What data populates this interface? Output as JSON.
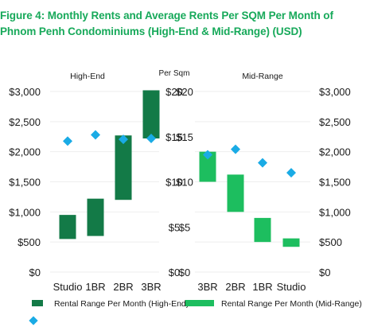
{
  "title": {
    "line1": "Figure 4: Monthly Rents and Average Rents Per SQM Per Month of",
    "line2": "Phnom Penh Condominiums (High-End & Mid-Range) (USD)"
  },
  "unit_label": "Per Sqm",
  "colors": {
    "title": "#17a95a",
    "high_end": "#137a47",
    "mid_range": "#1dbe5f",
    "per_sqm_marker": "#1aabe5"
  },
  "legend": [
    {
      "label": "Rental Range Per Month (High-End)",
      "color": "#137a47",
      "marker": "rect"
    },
    {
      "label": "Rental Range Per Month (Mid-Range)",
      "color": "#1dbe5f",
      "marker": "rect"
    },
    {
      "label": "",
      "color": "#1aabe5",
      "marker": "diamond"
    }
  ],
  "chart_data": [
    {
      "type": "bar",
      "subtitle": "High-End",
      "categories": [
        "Studio",
        "1BR",
        "2BR",
        "3BR"
      ],
      "ylim": [
        0,
        3000
      ],
      "yticks": [
        "$0",
        "$500",
        "$1,000",
        "$1,500",
        "$2,000",
        "$2,500",
        "$3,000"
      ],
      "series": [
        {
          "name": "Rental Range Per Month (High-End)",
          "kind": "range",
          "values": [
            [
              550,
              950
            ],
            [
              600,
              1220
            ],
            [
              1200,
              2270
            ],
            [
              2220,
              3020
            ]
          ]
        },
        {
          "kind": "marker",
          "axis": "right",
          "values": [
            14.5,
            15.2,
            14.7,
            14.8
          ]
        }
      ],
      "right_axis": {
        "label": "Per Sqm",
        "ylim": [
          0,
          20
        ],
        "yticks": [
          "$0",
          "$5",
          "$10",
          "$15",
          "$20"
        ]
      },
      "grid": true
    },
    {
      "type": "bar",
      "subtitle": "Mid-Range",
      "categories": [
        "3BR",
        "2BR",
        "1BR",
        "Studio"
      ],
      "ylim": [
        0,
        3000
      ],
      "yticks": [
        "$0",
        "$500",
        "$1,000",
        "$1,500",
        "$2,000",
        "$2,500",
        "$3,000"
      ],
      "series": [
        {
          "name": "Rental Range Per Month (Mid-Range)",
          "kind": "range",
          "values": [
            [
              1500,
              2000
            ],
            [
              1000,
              1620
            ],
            [
              500,
              900
            ],
            [
              420,
              560
            ]
          ]
        },
        {
          "kind": "marker",
          "axis": "left",
          "values": [
            13.0,
            13.6,
            12.1,
            11.0
          ]
        }
      ],
      "left_axis": {
        "ylim": [
          0,
          20
        ],
        "yticks": [
          "$0",
          "$5",
          "$10",
          "$15",
          "$20"
        ]
      },
      "grid": true
    }
  ]
}
